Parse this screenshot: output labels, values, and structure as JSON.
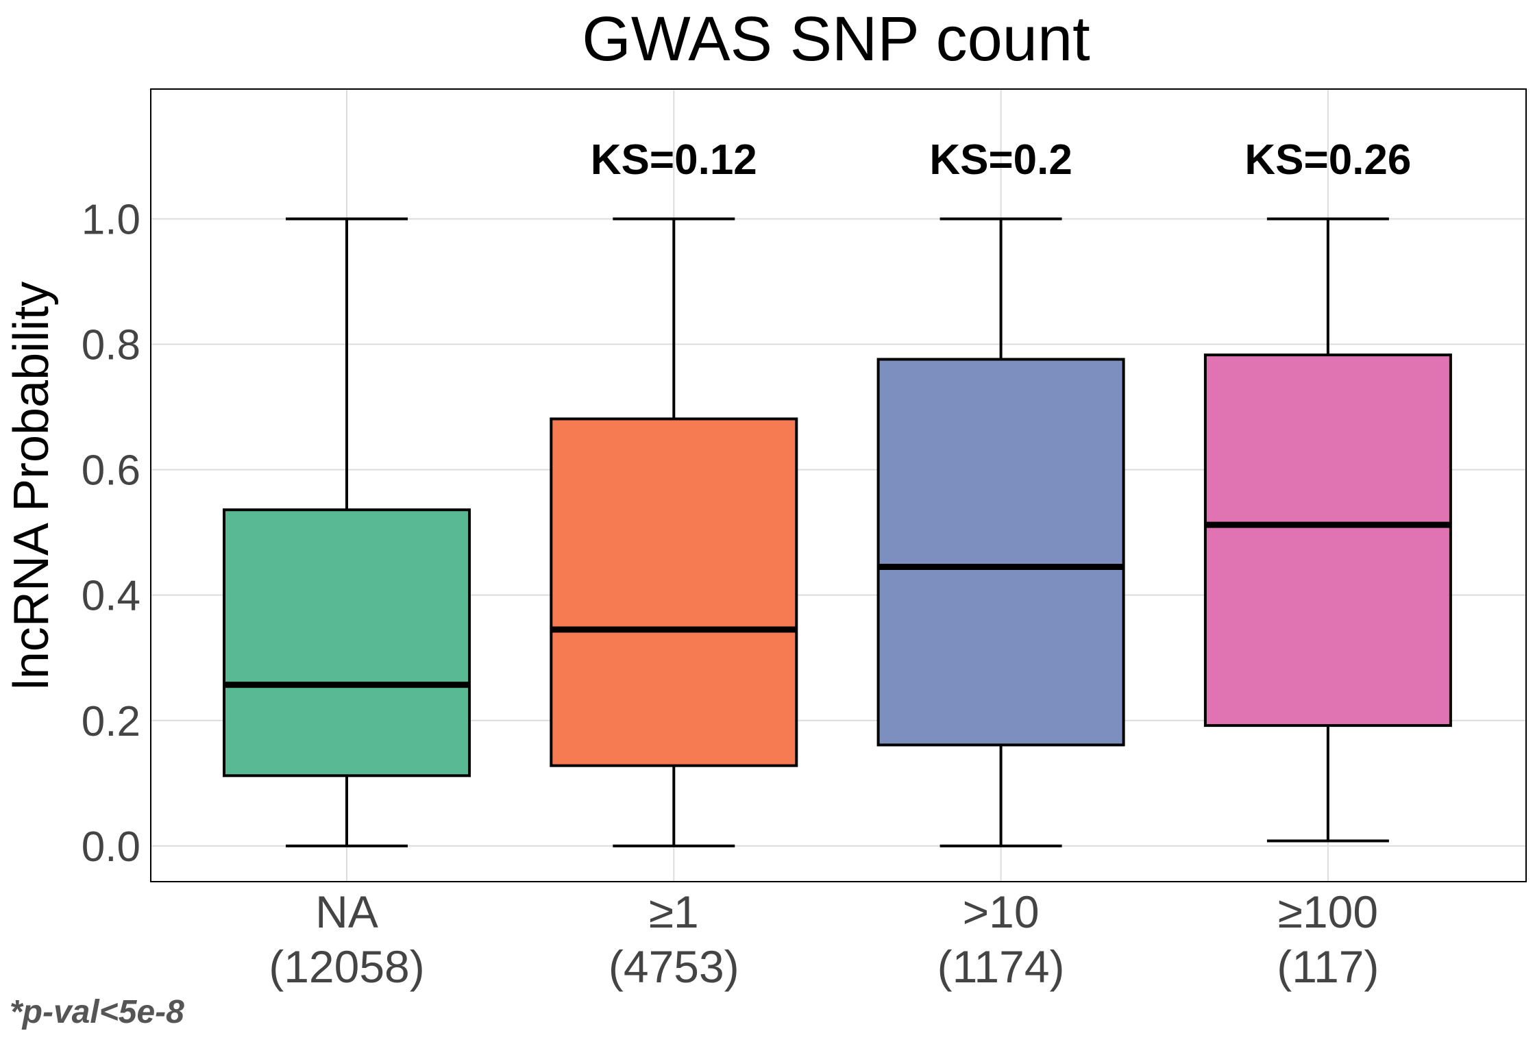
{
  "chart_data": {
    "type": "box",
    "title": "GWAS SNP count",
    "ylabel": "lncRNA Probability",
    "xlabel": "",
    "ylim": [
      -0.057,
      1.207
    ],
    "yticks": [
      0.0,
      0.2,
      0.4,
      0.6,
      0.8,
      1.0
    ],
    "ytick_labels": [
      "0.0",
      "0.2",
      "0.4",
      "0.6",
      "0.8",
      "1.0"
    ],
    "grid": true,
    "legend": "none",
    "categories": [
      {
        "label": "NA",
        "count_label": "(12058)",
        "min": 0.0,
        "q1": 0.112,
        "median": 0.257,
        "q3": 0.536,
        "max": 1.0,
        "annotation": "",
        "color": "#59b994"
      },
      {
        "label": "≥1",
        "count_label": "(4753)",
        "min": 0.0,
        "q1": 0.128,
        "median": 0.345,
        "q3": 0.681,
        "max": 1.0,
        "annotation": "KS=0.12",
        "color": "#f77b52"
      },
      {
        "label": ">10",
        "count_label": "(1174)",
        "min": 0.0,
        "q1": 0.161,
        "median": 0.445,
        "q3": 0.776,
        "max": 1.0,
        "annotation": "KS=0.2",
        "color": "#7d8fbf"
      },
      {
        "label": "≥100",
        "count_label": "(117)",
        "min": 0.008,
        "q1": 0.192,
        "median": 0.512,
        "q3": 0.783,
        "max": 1.0,
        "annotation": "KS=0.26",
        "color": "#e073b1"
      }
    ]
  },
  "footnote": "*p-val<5e-8"
}
